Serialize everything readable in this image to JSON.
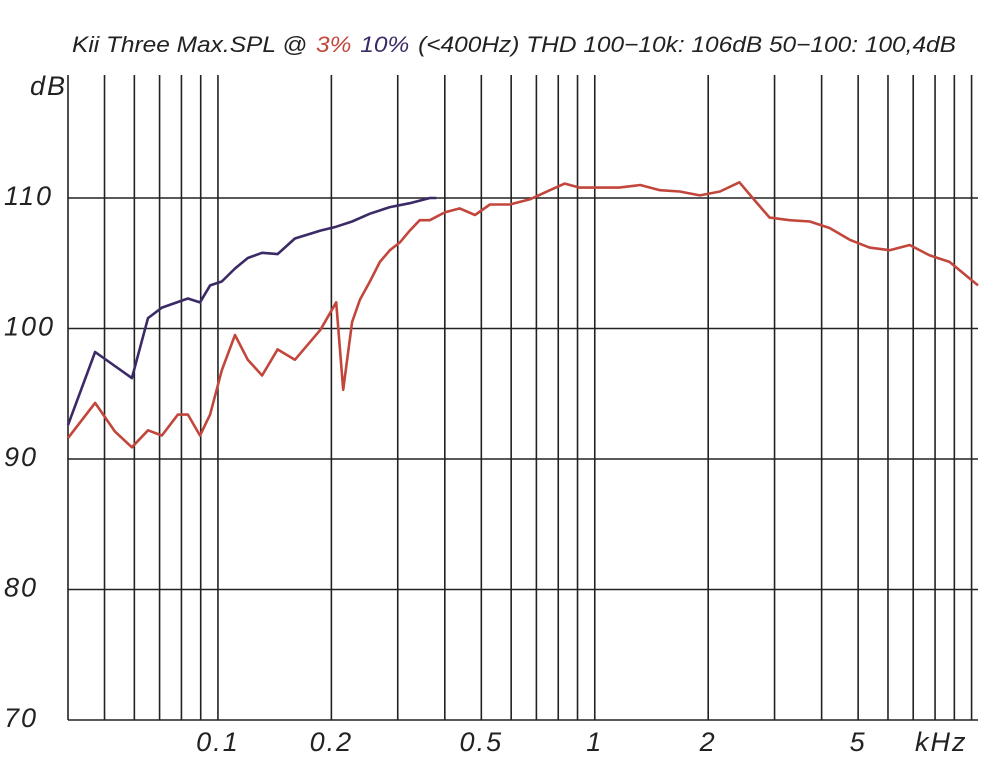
{
  "chart_data": {
    "type": "line",
    "title": [
      "Kii Three Max.SPL @",
      "(<400Hz) THD 100−10k: 106dB 50−100: 100,4dB"
    ],
    "y_label": "dB",
    "x_label": "kHz",
    "log_x": true,
    "grid": true,
    "xlim": [
      0.04,
      10.4
    ],
    "ylim": [
      70,
      120
    ],
    "yticks": [
      70,
      80,
      90,
      100,
      110
    ],
    "xticks": [
      0.1,
      0.2,
      0.5,
      1,
      2,
      5
    ],
    "xgrid": [
      0.05,
      0.06,
      0.07,
      0.08,
      0.09,
      0.1,
      0.2,
      0.3,
      0.4,
      0.5,
      0.6,
      0.7,
      0.8,
      0.9,
      1,
      2,
      3,
      4,
      5,
      6,
      7,
      8,
      9,
      10
    ],
    "series": [
      {
        "name": "3%",
        "color": "#c2463c",
        "x": [
          0.04,
          0.0472,
          0.0533,
          0.0591,
          0.0652,
          0.071,
          0.0783,
          0.0832,
          0.0896,
          0.0953,
          0.1024,
          0.111,
          0.12,
          0.131,
          0.144,
          0.16,
          0.187,
          0.206,
          0.215,
          0.227,
          0.238,
          0.253,
          0.269,
          0.286,
          0.304,
          0.323,
          0.343,
          0.365,
          0.4,
          0.438,
          0.481,
          0.527,
          0.595,
          0.673,
          0.76,
          0.832,
          0.912,
          1.03,
          1.16,
          1.32,
          1.49,
          1.68,
          1.9,
          2.15,
          2.42,
          2.66,
          2.91,
          3.29,
          3.72,
          4.2,
          4.75,
          5.36,
          6.06,
          6.85,
          7.74,
          8.74,
          10.4
        ],
        "values": [
          91.6,
          94.3,
          92.1,
          90.9,
          92.2,
          91.8,
          93.4,
          93.4,
          91.8,
          93.4,
          96.8,
          99.5,
          97.6,
          96.4,
          98.4,
          97.6,
          99.9,
          102.0,
          95.3,
          100.5,
          102.2,
          103.6,
          105.1,
          106.0,
          106.6,
          107.5,
          108.3,
          108.3,
          108.9,
          109.2,
          108.7,
          109.5,
          109.5,
          109.9,
          110.6,
          111.1,
          110.8,
          110.8,
          110.8,
          111.0,
          110.6,
          110.5,
          110.2,
          110.5,
          111.2,
          109.8,
          108.5,
          108.3,
          108.2,
          107.7,
          106.8,
          106.2,
          106.0,
          106.4,
          105.6,
          105.1,
          103.3
        ]
      },
      {
        "name": "10%",
        "color": "#3b2a66",
        "x": [
          0.04,
          0.0472,
          0.0591,
          0.0652,
          0.071,
          0.0832,
          0.0896,
          0.0953,
          0.1024,
          0.111,
          0.12,
          0.131,
          0.144,
          0.16,
          0.187,
          0.206,
          0.227,
          0.253,
          0.286,
          0.323,
          0.365,
          0.38
        ],
        "values": [
          92.6,
          98.2,
          96.2,
          100.8,
          101.6,
          102.3,
          102.0,
          103.3,
          103.6,
          104.6,
          105.4,
          105.8,
          105.7,
          106.9,
          107.5,
          107.8,
          108.2,
          108.8,
          109.3,
          109.6,
          110.0,
          110.0
        ]
      }
    ]
  }
}
